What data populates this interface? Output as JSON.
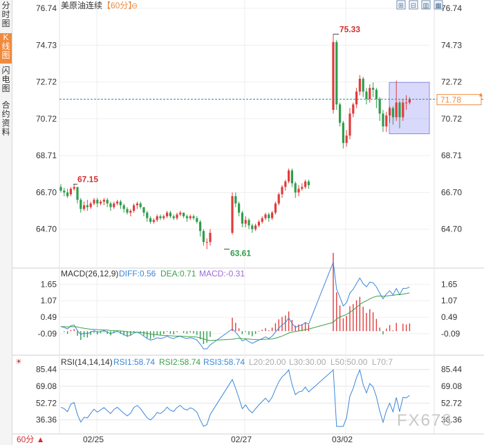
{
  "sidebar": {
    "tabs": [
      {
        "label": "分时图",
        "active": false
      },
      {
        "label": "K线图",
        "active": true
      },
      {
        "label": "闪电图",
        "active": false
      },
      {
        "label": "合约资料",
        "active": false
      }
    ]
  },
  "header": {
    "title": "美原油连续",
    "period": "【60分】",
    "toolbar_icons": [
      "zoom-in-icon",
      "zoom-out-icon",
      "chart-type-icon",
      "more-icon"
    ]
  },
  "footer": {
    "period_label": "60分 ▲"
  },
  "watermark": "FX678",
  "colors": {
    "up": "#e03c3c",
    "down": "#2e9e4a",
    "diff": "#3a86d8",
    "dea": "#3aa04a",
    "rsi": "#3a86d8",
    "accent": "#f08a3c"
  },
  "chart_data": {
    "type": "candlestick",
    "price": {
      "ylim": [
        62.69,
        76.74
      ],
      "y_ticks": [
        "76.74",
        "74.73",
        "72.72",
        "70.72",
        "68.71",
        "66.70",
        "64.70"
      ],
      "high_label": "75.33",
      "low_label": "63.61",
      "marker_label": "67.15",
      "current_price": "71.78",
      "x_labels": [
        "02/25",
        "02/27",
        "03/02"
      ]
    },
    "macd": {
      "legend": "MACD(26,12,9)",
      "diff_label": "DIFF:0.56",
      "dea_label": "DEA:0.71",
      "macd_label": "MACD:-0.31",
      "y_ticks": [
        "1.65",
        "1.07",
        "0.49",
        "-0.09"
      ],
      "ylim": [
        -0.7,
        2.0
      ]
    },
    "rsi": {
      "legend": "RSI(14,14,14)",
      "rsi1_label": "RSI1:58.74",
      "rsi2_label": "RSI2:58.74",
      "rsi3_label": "RSI3:58.74",
      "l20_label": "L20:20.00",
      "l30_label": "L30:30.00",
      "l50_label": "L50:50.00",
      "l70_label": "L70:7",
      "y_ticks": [
        "85.44",
        "69.08",
        "52.72",
        "36.36"
      ],
      "ylim": [
        24,
        92
      ]
    }
  }
}
